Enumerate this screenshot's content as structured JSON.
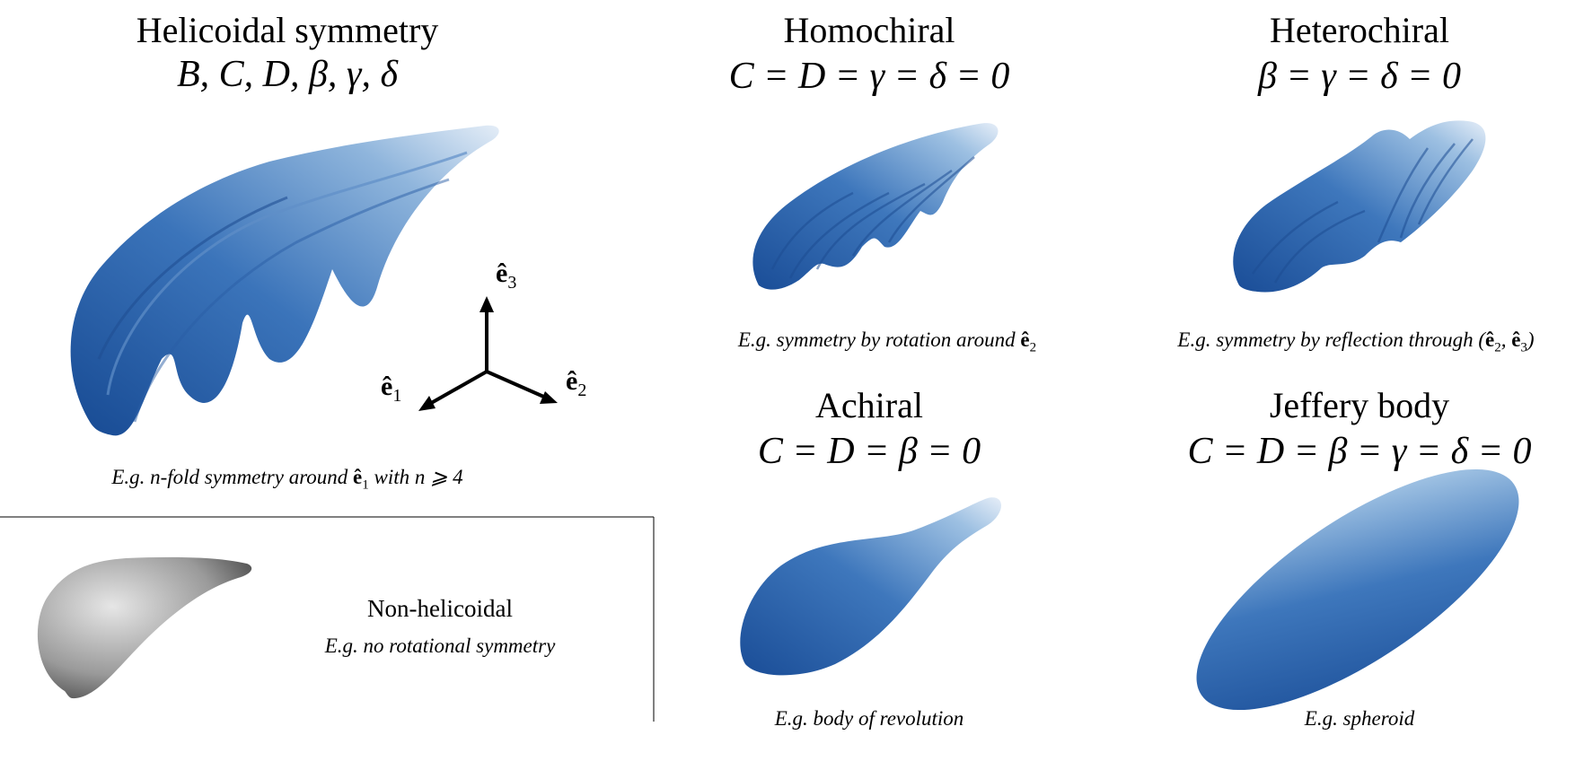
{
  "panels": {
    "helicoidal": {
      "title": "Helicoidal symmetry",
      "params": "B, C, D, β, γ, δ",
      "caption_pre": "E.g. n-fold symmetry around ",
      "caption_vec": "ê",
      "caption_sub": "1",
      "caption_post": " with n ⩾ 4"
    },
    "homochiral": {
      "title": "Homochiral",
      "equation": "C = D = γ = δ = 0",
      "caption_pre": "E.g. symmetry by rotation around ",
      "caption_vec": "ê",
      "caption_sub": "2"
    },
    "heterochiral": {
      "title": "Heterochiral",
      "equation": "β = γ = δ = 0",
      "caption_pre": "E.g. symmetry by reflection through (",
      "caption_vec1": "ê",
      "caption_sub1": "2",
      "caption_mid": ", ",
      "caption_vec2": "ê",
      "caption_sub2": "3",
      "caption_post": ")"
    },
    "achiral": {
      "title": "Achiral",
      "equation": "C = D = β = 0",
      "caption": "E.g. body of revolution"
    },
    "jeffery": {
      "title": "Jeffery body",
      "equation": "C = D = β = γ = δ = 0",
      "caption": "E.g. spheroid"
    },
    "non_helicoidal": {
      "title": "Non-helicoidal",
      "caption": "E.g. no rotational symmetry"
    }
  },
  "axes": {
    "e1": {
      "vec": "ê",
      "sub": "1"
    },
    "e2": {
      "vec": "ê",
      "sub": "2"
    },
    "e3": {
      "vec": "ê",
      "sub": "3"
    }
  },
  "colors": {
    "shape_dark": "#1c4f99",
    "shape_mid": "#3f78bd",
    "shape_light": "#dce8f5",
    "nonhelicoidal_gray": "#8a8a8a"
  }
}
